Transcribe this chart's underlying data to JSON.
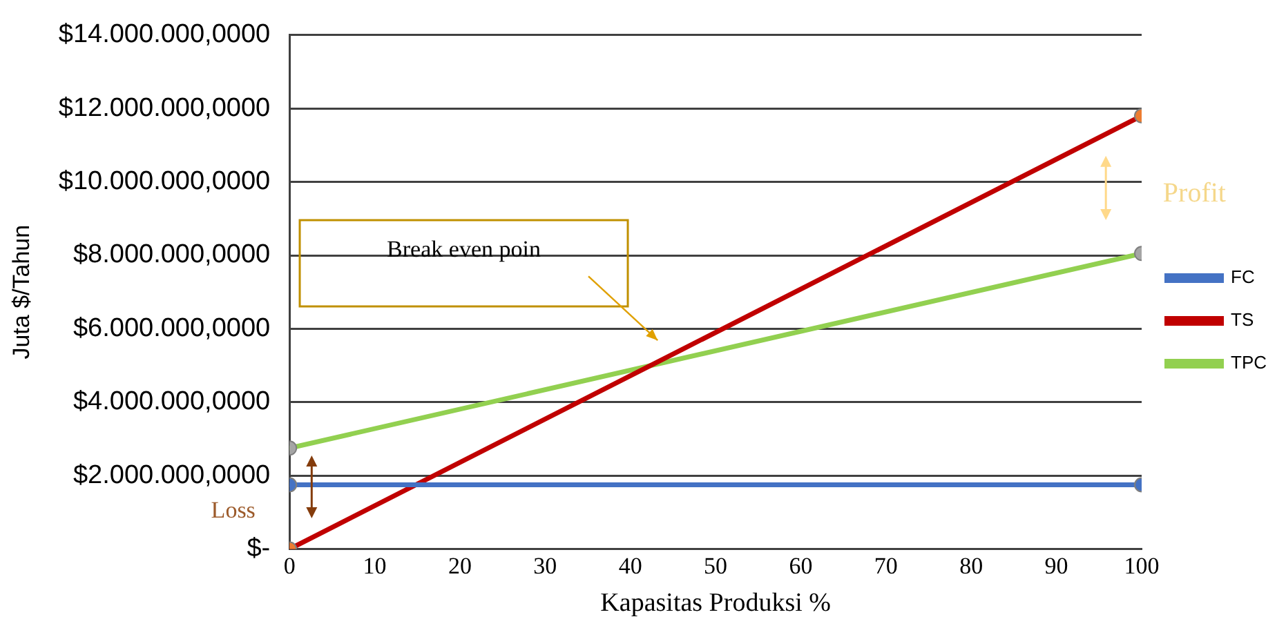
{
  "chart_data": {
    "type": "line",
    "xlabel": "Kapasitas Produksi %",
    "ylabel": "Juta $/Tahun",
    "x": [
      0,
      100
    ],
    "series": [
      {
        "name": "FC",
        "color": "#4472c4",
        "colors": [
          "#4472c4",
          "#4472c4"
        ],
        "values": [
          1750000,
          1750000
        ]
      },
      {
        "name": "TS",
        "color": "#c00000",
        "colors": [
          "#ed7d31",
          "#ed7d31"
        ],
        "values": [
          0,
          11800000
        ]
      },
      {
        "name": "TPC",
        "color": "#92d050",
        "colors": [
          "#a5a5a5",
          "#a5a5a5"
        ],
        "values": [
          2750000,
          8050000
        ]
      }
    ],
    "xlim": [
      0,
      100
    ],
    "xticks": [
      0,
      10,
      20,
      30,
      40,
      50,
      60,
      70,
      80,
      90,
      100
    ],
    "ylim": [
      0,
      14000000
    ],
    "yticks": [
      {
        "value": 0,
        "label": "$-"
      },
      {
        "value": 2000000,
        "label": "$2.000.000,0000"
      },
      {
        "value": 4000000,
        "label": "$4.000.000,0000"
      },
      {
        "value": 6000000,
        "label": "$6.000.000,0000"
      },
      {
        "value": 8000000,
        "label": "$8.000.000,0000"
      },
      {
        "value": 10000000,
        "label": "$10.000.000,0000"
      },
      {
        "value": 12000000,
        "label": "$12.000.000,0000"
      },
      {
        "value": 14000000,
        "label": "$14.000.000,0000"
      }
    ],
    "grid": "y",
    "legend": "right",
    "marker": "circle",
    "line_style": "solid",
    "annotations": [
      "Break even poin",
      "Profit",
      "Loss"
    ]
  }
}
